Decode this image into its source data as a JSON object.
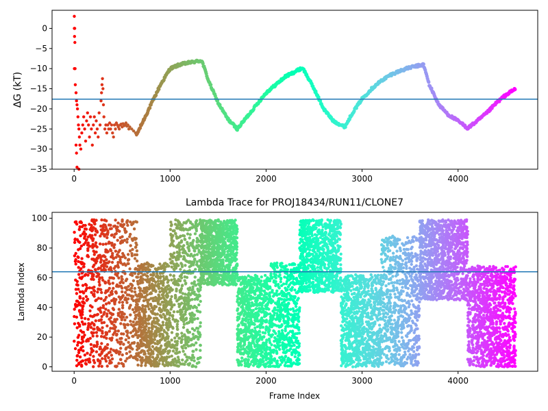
{
  "chart_data": [
    {
      "type": "scatter",
      "ylabel": "ΔG (kT)",
      "xlim": [
        -230,
        4830
      ],
      "ylim": [
        -35,
        4.5
      ],
      "xticks": [
        0,
        1000,
        2000,
        3000,
        4000
      ],
      "yticks": [
        0,
        -5,
        -10,
        -15,
        -20,
        -25,
        -30,
        -35
      ],
      "hline": -17.6,
      "colormap": "rainbow",
      "early_points": [
        {
          "x": 2,
          "y": 3
        },
        {
          "x": 2,
          "y": 0
        },
        {
          "x": 6,
          "y": 0
        },
        {
          "x": 4,
          "y": -2
        },
        {
          "x": 8,
          "y": -3.5
        },
        {
          "x": 3,
          "y": -10
        },
        {
          "x": 10,
          "y": -10
        },
        {
          "x": 12,
          "y": -14
        },
        {
          "x": 20,
          "y": -16
        },
        {
          "x": 25,
          "y": -18
        },
        {
          "x": 30,
          "y": -19
        },
        {
          "x": 35,
          "y": -20
        },
        {
          "x": 40,
          "y": -22
        },
        {
          "x": 45,
          "y": -24
        },
        {
          "x": 50,
          "y": -25
        },
        {
          "x": 55,
          "y": -27
        },
        {
          "x": 60,
          "y": -29
        },
        {
          "x": 20,
          "y": -29
        },
        {
          "x": 25,
          "y": -31
        },
        {
          "x": 30,
          "y": -34.5
        },
        {
          "x": 50,
          "y": -35
        },
        {
          "x": 70,
          "y": -30
        },
        {
          "x": 80,
          "y": -26
        },
        {
          "x": 90,
          "y": -24
        },
        {
          "x": 100,
          "y": -22
        },
        {
          "x": 110,
          "y": -25
        },
        {
          "x": 120,
          "y": -28
        },
        {
          "x": 130,
          "y": -23
        },
        {
          "x": 140,
          "y": -21
        },
        {
          "x": 150,
          "y": -24
        },
        {
          "x": 160,
          "y": -27
        },
        {
          "x": 170,
          "y": -22
        },
        {
          "x": 180,
          "y": -25
        },
        {
          "x": 190,
          "y": -29
        },
        {
          "x": 200,
          "y": -24
        },
        {
          "x": 210,
          "y": -22
        },
        {
          "x": 220,
          "y": -26
        },
        {
          "x": 230,
          "y": -23
        },
        {
          "x": 240,
          "y": -25
        },
        {
          "x": 250,
          "y": -27
        },
        {
          "x": 260,
          "y": -21
        },
        {
          "x": 270,
          "y": -24
        },
        {
          "x": 280,
          "y": -18
        },
        {
          "x": 285,
          "y": -16
        },
        {
          "x": 290,
          "y": -14
        },
        {
          "x": 295,
          "y": -12.5
        },
        {
          "x": 300,
          "y": -15
        },
        {
          "x": 305,
          "y": -19
        },
        {
          "x": 310,
          "y": -22
        },
        {
          "x": 320,
          "y": -25
        },
        {
          "x": 330,
          "y": -24
        },
        {
          "x": 340,
          "y": -26
        },
        {
          "x": 350,
          "y": -24
        },
        {
          "x": 360,
          "y": -25
        },
        {
          "x": 370,
          "y": -23.5
        },
        {
          "x": 380,
          "y": -25
        },
        {
          "x": 390,
          "y": -24
        },
        {
          "x": 400,
          "y": -26
        },
        {
          "x": 410,
          "y": -27
        },
        {
          "x": 420,
          "y": -24
        },
        {
          "x": 430,
          "y": -25
        },
        {
          "x": 440,
          "y": -23.5
        },
        {
          "x": 450,
          "y": -24
        },
        {
          "x": 460,
          "y": -24.5
        },
        {
          "x": 470,
          "y": -25
        },
        {
          "x": 480,
          "y": -24
        },
        {
          "x": 490,
          "y": -23.8
        },
        {
          "x": 500,
          "y": -24.5
        },
        {
          "x": 510,
          "y": -23.7
        },
        {
          "x": 520,
          "y": -24.2
        },
        {
          "x": 530,
          "y": -24
        },
        {
          "x": 540,
          "y": -23.5
        },
        {
          "x": 550,
          "y": -24.3
        },
        {
          "x": 560,
          "y": -24
        },
        {
          "x": 570,
          "y": -25
        },
        {
          "x": 580,
          "y": -24.5
        },
        {
          "x": 600,
          "y": -25
        },
        {
          "x": 620,
          "y": -25.5
        },
        {
          "x": 640,
          "y": -26
        },
        {
          "x": 650,
          "y": -26.5
        }
      ],
      "trace_anchors": [
        {
          "x": 650,
          "y": -26.5
        },
        {
          "x": 700,
          "y": -24
        },
        {
          "x": 800,
          "y": -19
        },
        {
          "x": 900,
          "y": -14
        },
        {
          "x": 1000,
          "y": -10
        },
        {
          "x": 1100,
          "y": -9
        },
        {
          "x": 1200,
          "y": -8.5
        },
        {
          "x": 1330,
          "y": -8
        },
        {
          "x": 1400,
          "y": -13
        },
        {
          "x": 1500,
          "y": -18.5
        },
        {
          "x": 1600,
          "y": -22.5
        },
        {
          "x": 1700,
          "y": -25
        },
        {
          "x": 1800,
          "y": -22
        },
        {
          "x": 1900,
          "y": -19
        },
        {
          "x": 2000,
          "y": -16
        },
        {
          "x": 2100,
          "y": -14
        },
        {
          "x": 2200,
          "y": -12
        },
        {
          "x": 2380,
          "y": -9.8
        },
        {
          "x": 2500,
          "y": -15
        },
        {
          "x": 2600,
          "y": -20
        },
        {
          "x": 2700,
          "y": -23
        },
        {
          "x": 2820,
          "y": -24.5
        },
        {
          "x": 2900,
          "y": -21
        },
        {
          "x": 3000,
          "y": -17.5
        },
        {
          "x": 3100,
          "y": -15
        },
        {
          "x": 3200,
          "y": -13
        },
        {
          "x": 3300,
          "y": -11.5
        },
        {
          "x": 3400,
          "y": -10.5
        },
        {
          "x": 3500,
          "y": -9.7
        },
        {
          "x": 3640,
          "y": -9
        },
        {
          "x": 3700,
          "y": -14
        },
        {
          "x": 3800,
          "y": -19
        },
        {
          "x": 3900,
          "y": -21.5
        },
        {
          "x": 4000,
          "y": -23
        },
        {
          "x": 4100,
          "y": -24.8
        },
        {
          "x": 4200,
          "y": -23
        },
        {
          "x": 4300,
          "y": -21
        },
        {
          "x": 4400,
          "y": -18.5
        },
        {
          "x": 4500,
          "y": -16.5
        },
        {
          "x": 4600,
          "y": -15
        }
      ]
    },
    {
      "type": "scatter",
      "title": "Lambda Trace for PROJ18434/RUN11/CLONE7",
      "xlabel": "Frame Index",
      "ylabel": "Lambda Index",
      "xlim": [
        -230,
        4830
      ],
      "ylim": [
        -3,
        104
      ],
      "xticks": [
        0,
        1000,
        2000,
        3000,
        4000
      ],
      "yticks": [
        0,
        20,
        40,
        60,
        80,
        100
      ],
      "hline": 64,
      "colormap": "rainbow",
      "lambda_range": [
        0,
        99
      ],
      "bands": [
        {
          "x": [
            0,
            40
          ],
          "y": [
            0,
            99
          ],
          "density": 1.0
        },
        {
          "x": [
            40,
            200
          ],
          "y": [
            0,
            99
          ],
          "density": 1.3
        },
        {
          "x": [
            200,
            420
          ],
          "y": [
            0,
            99
          ],
          "density": 1.4
        },
        {
          "x": [
            420,
            660
          ],
          "y": [
            0,
            99
          ],
          "density": 1.3
        },
        {
          "x": [
            660,
            1000
          ],
          "y": [
            0,
            70
          ],
          "density": 2.0
        },
        {
          "x": [
            1000,
            1320
          ],
          "y": [
            0,
            99
          ],
          "density": 1.8
        },
        {
          "x": [
            1320,
            1700
          ],
          "y": [
            55,
            99
          ],
          "density": 2.3
        },
        {
          "x": [
            1700,
            2050
          ],
          "y": [
            0,
            62
          ],
          "density": 2.2
        },
        {
          "x": [
            2050,
            2350
          ],
          "y": [
            0,
            70
          ],
          "density": 1.8
        },
        {
          "x": [
            2350,
            2780
          ],
          "y": [
            50,
            99
          ],
          "density": 2.2
        },
        {
          "x": [
            2780,
            3200
          ],
          "y": [
            0,
            62
          ],
          "density": 2.2
        },
        {
          "x": [
            3200,
            3600
          ],
          "y": [
            0,
            88
          ],
          "density": 1.8
        },
        {
          "x": [
            3600,
            4100
          ],
          "y": [
            45,
            99
          ],
          "density": 2.2
        },
        {
          "x": [
            4100,
            4600
          ],
          "y": [
            0,
            68
          ],
          "density": 2.2
        }
      ]
    }
  ]
}
